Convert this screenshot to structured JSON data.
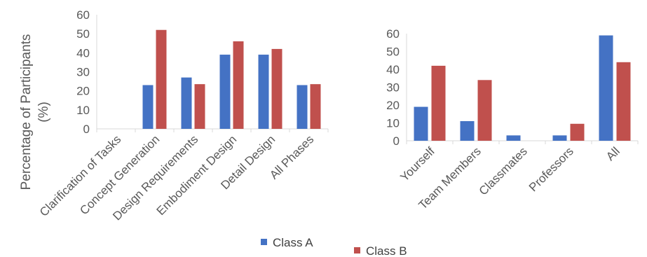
{
  "colors": {
    "class_a": "#4472c4",
    "class_b": "#c0504d",
    "axis": "#d9d9d9",
    "text": "#595959"
  },
  "chart_data": [
    {
      "type": "bar",
      "ylabel_line1": "Percentage of Participants",
      "ylabel_line2": "(%)",
      "ylim": [
        0,
        60
      ],
      "yticks": [
        "0",
        "10",
        "20",
        "30",
        "40",
        "50",
        "60"
      ],
      "grid": false,
      "categories": [
        "Clarification of Tasks",
        "Concept Generation",
        "Design Requirements",
        "Embodiment Design",
        "Detail Design",
        "All Phases"
      ],
      "series": [
        {
          "name": "Class A",
          "values": [
            0,
            23,
            27,
            39,
            39,
            23
          ]
        },
        {
          "name": "Class B",
          "values": [
            0,
            52,
            23.5,
            46,
            42,
            23.5
          ]
        }
      ]
    },
    {
      "type": "bar",
      "ylim": [
        0,
        60
      ],
      "yticks": [
        "0",
        "10",
        "20",
        "30",
        "40",
        "50",
        "60"
      ],
      "grid": false,
      "categories": [
        "Yourself",
        "Team Members",
        "Classmates",
        "Professors",
        "All"
      ],
      "series": [
        {
          "name": "Class A",
          "values": [
            19,
            11,
            3,
            3,
            59
          ]
        },
        {
          "name": "Class B",
          "values": [
            42,
            34,
            0,
            9.5,
            44
          ]
        }
      ]
    }
  ],
  "legend": {
    "items": [
      "Class A",
      "Class B"
    ]
  }
}
